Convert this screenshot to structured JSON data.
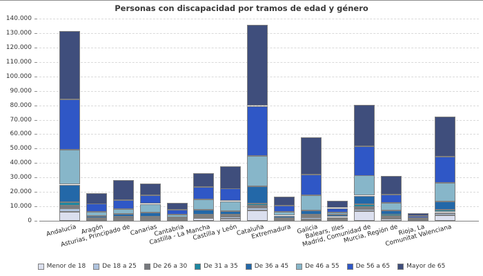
{
  "title": "Personas con discapacidad por tramos de edad y género",
  "chart_data": {
    "type": "bar",
    "stacked": true,
    "title": "Personas con discapacidad por tramos de edad y género",
    "xlabel": "",
    "ylabel": "",
    "ylim": [
      0,
      140000
    ],
    "ytick_step": 10000,
    "ytick_labels": [
      "0",
      "10.000",
      "20.000",
      "30.000",
      "40.000",
      "50.000",
      "60.000",
      "70.000",
      "80.000",
      "90.000",
      "100.000",
      "110.000",
      "120.000",
      "130.000",
      "140.000"
    ],
    "grid": "horizontal-dashed",
    "legend_position": "bottom",
    "categories": [
      "Andalucía",
      "Aragón",
      "Asturias, Principado de",
      "Canarias",
      "Cantabria",
      "Castilla - La Mancha",
      "Castilla y León",
      "Cataluña",
      "Extremadura",
      "Galicia",
      "Balears, Illes",
      "Madrid, Comunidad de",
      "Murcia, Región de",
      "Rioja, La",
      "Comunitat Valenciana"
    ],
    "series": [
      {
        "name": "Menor de 18",
        "color": "#dbdfee",
        "values": [
          6200,
          300,
          500,
          800,
          500,
          2000,
          1200,
          7200,
          600,
          1000,
          400,
          6500,
          1300,
          200,
          3600
        ]
      },
      {
        "name": "De 18 a 25",
        "color": "#afc3de",
        "values": [
          2300,
          400,
          1100,
          700,
          300,
          1100,
          1400,
          1900,
          500,
          1200,
          800,
          1600,
          900,
          200,
          1300
        ]
      },
      {
        "name": "De 26 a 30",
        "color": "#77797e",
        "values": [
          2000,
          700,
          1300,
          900,
          400,
          800,
          1300,
          1400,
          600,
          1000,
          800,
          1600,
          1000,
          300,
          1100
        ]
      },
      {
        "name": "De 31 a 35",
        "color": "#1e87a0",
        "values": [
          2600,
          300,
          200,
          700,
          200,
          400,
          400,
          1400,
          400,
          1100,
          700,
          1900,
          1200,
          300,
          1600
        ]
      },
      {
        "name": "De 36 a 45",
        "color": "#2368a8",
        "values": [
          12000,
          1600,
          1800,
          2800,
          800,
          3200,
          2600,
          12100,
          1500,
          2900,
          1600,
          5900,
          2800,
          500,
          5600
        ]
      },
      {
        "name": "De 46 a 55",
        "color": "#87b6c9",
        "values": [
          24000,
          2700,
          3200,
          5900,
          2100,
          7200,
          6800,
          21100,
          2400,
          10600,
          1600,
          13700,
          5200,
          600,
          13100
        ]
      },
      {
        "name": "De 56 a 65",
        "color": "#2f57c6",
        "values": [
          34900,
          5500,
          6400,
          5900,
          3500,
          8500,
          8400,
          34500,
          4300,
          14300,
          3100,
          20500,
          5600,
          1200,
          18300
        ]
      },
      {
        "name": "Mayor de 65",
        "color": "#3f4e7c",
        "values": [
          47300,
          7800,
          14000,
          7900,
          4800,
          9700,
          15900,
          55700,
          6100,
          26000,
          4700,
          28700,
          12700,
          2000,
          27500
        ]
      }
    ]
  },
  "colors": {
    "axis": "#808080",
    "grid": "#d9d9d9",
    "segment_border": "#7f7f7f",
    "title_text": "#3a3a3a",
    "label_text": "#333333",
    "background": "#ffffff"
  }
}
